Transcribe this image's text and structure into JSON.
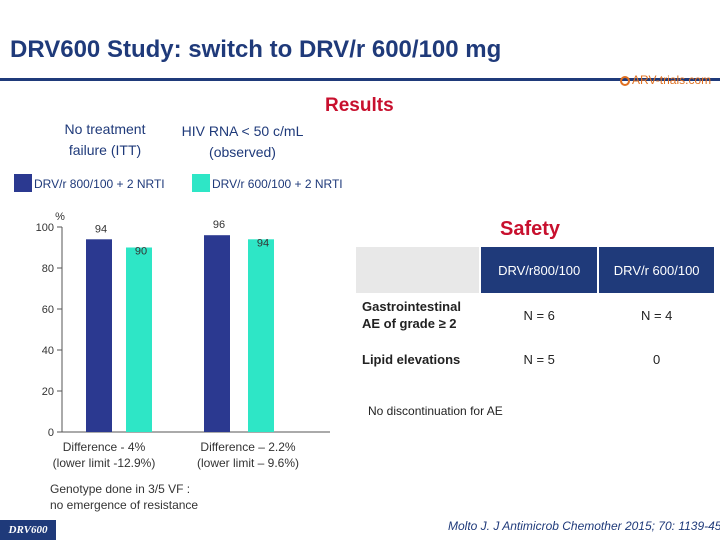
{
  "slide": {
    "title": "DRV600 Study: switch to DRV/r 600/100 mg",
    "logo_text": "ARV-trials.com",
    "results_label": "Results",
    "badge": "DRV600",
    "citation": "Molto J. J Antimicrob Chemother 2015; 70: 1139-45",
    "colors": {
      "title": "#1f3a7a",
      "accent": "#c8102e",
      "series1": "#2b3990",
      "series2": "#2ee6c6"
    }
  },
  "chart_data": {
    "type": "bar",
    "ylim": [
      0,
      100
    ],
    "y_ticks": [
      "0",
      "20",
      "40",
      "60",
      "80",
      "100"
    ],
    "y_unit_label": "%",
    "groups": [
      {
        "name": "No treatment\nfailure (ITT)",
        "difference": "Difference - 4%\n(lower limit -12.9%)"
      },
      {
        "name": "HIV RNA < 50 c/mL\n(observed)",
        "difference": "Difference – 2.2%\n(lower limit – 9.6%)"
      }
    ],
    "series": [
      {
        "name": "DRV/r 800/100 + 2 NRTI",
        "values": [
          94,
          96
        ],
        "color": "#2b3990"
      },
      {
        "name": "DRV/r 600/100 + 2 NRTI",
        "values": [
          90,
          94
        ],
        "color": "#2ee6c6"
      }
    ],
    "footnote": "Genotype done in 3/5 VF :\nno emergence of resistance"
  },
  "safety": {
    "title": "Safety",
    "columns": [
      "DRV/r800/100",
      "DRV/r 600/100"
    ],
    "rows": [
      {
        "label": "Gastrointestinal AE of grade ≥ 2",
        "values": [
          "N = 6",
          "N = 4"
        ]
      },
      {
        "label": "Lipid elevations",
        "values": [
          "N = 5",
          "0"
        ]
      }
    ],
    "note": "No discontinuation for AE"
  }
}
